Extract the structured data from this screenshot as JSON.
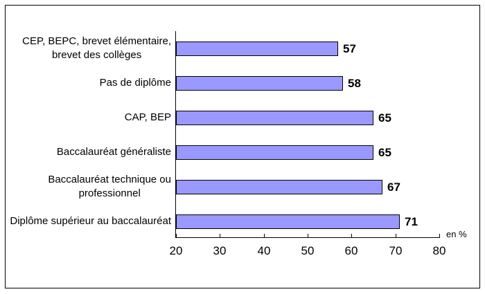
{
  "chart_data": {
    "type": "bar",
    "orientation": "horizontal",
    "title": "",
    "unit_label": "en %",
    "categories": [
      "CEP, BEPC, brevet élémentaire,\nbrevet des collèges",
      "Pas de diplôme",
      "CAP, BEP",
      "Baccalauréat généraliste",
      "Baccalauréat technique ou\nprofessionnel",
      "Diplôme supérieur au baccalauréat"
    ],
    "values": [
      57,
      58,
      65,
      65,
      67,
      71
    ],
    "data_labels": [
      "57",
      "58",
      "65",
      "65",
      "67",
      "71"
    ],
    "x_ticks": [
      20,
      30,
      40,
      50,
      60,
      70,
      80
    ],
    "xlim": [
      20,
      80
    ],
    "grid": false,
    "legend": false,
    "colors": {
      "bar_fill": "#9999FF",
      "bar_border": "#000000",
      "axis": "#000000",
      "text": "#000000",
      "background": "#FFFFFF"
    }
  }
}
